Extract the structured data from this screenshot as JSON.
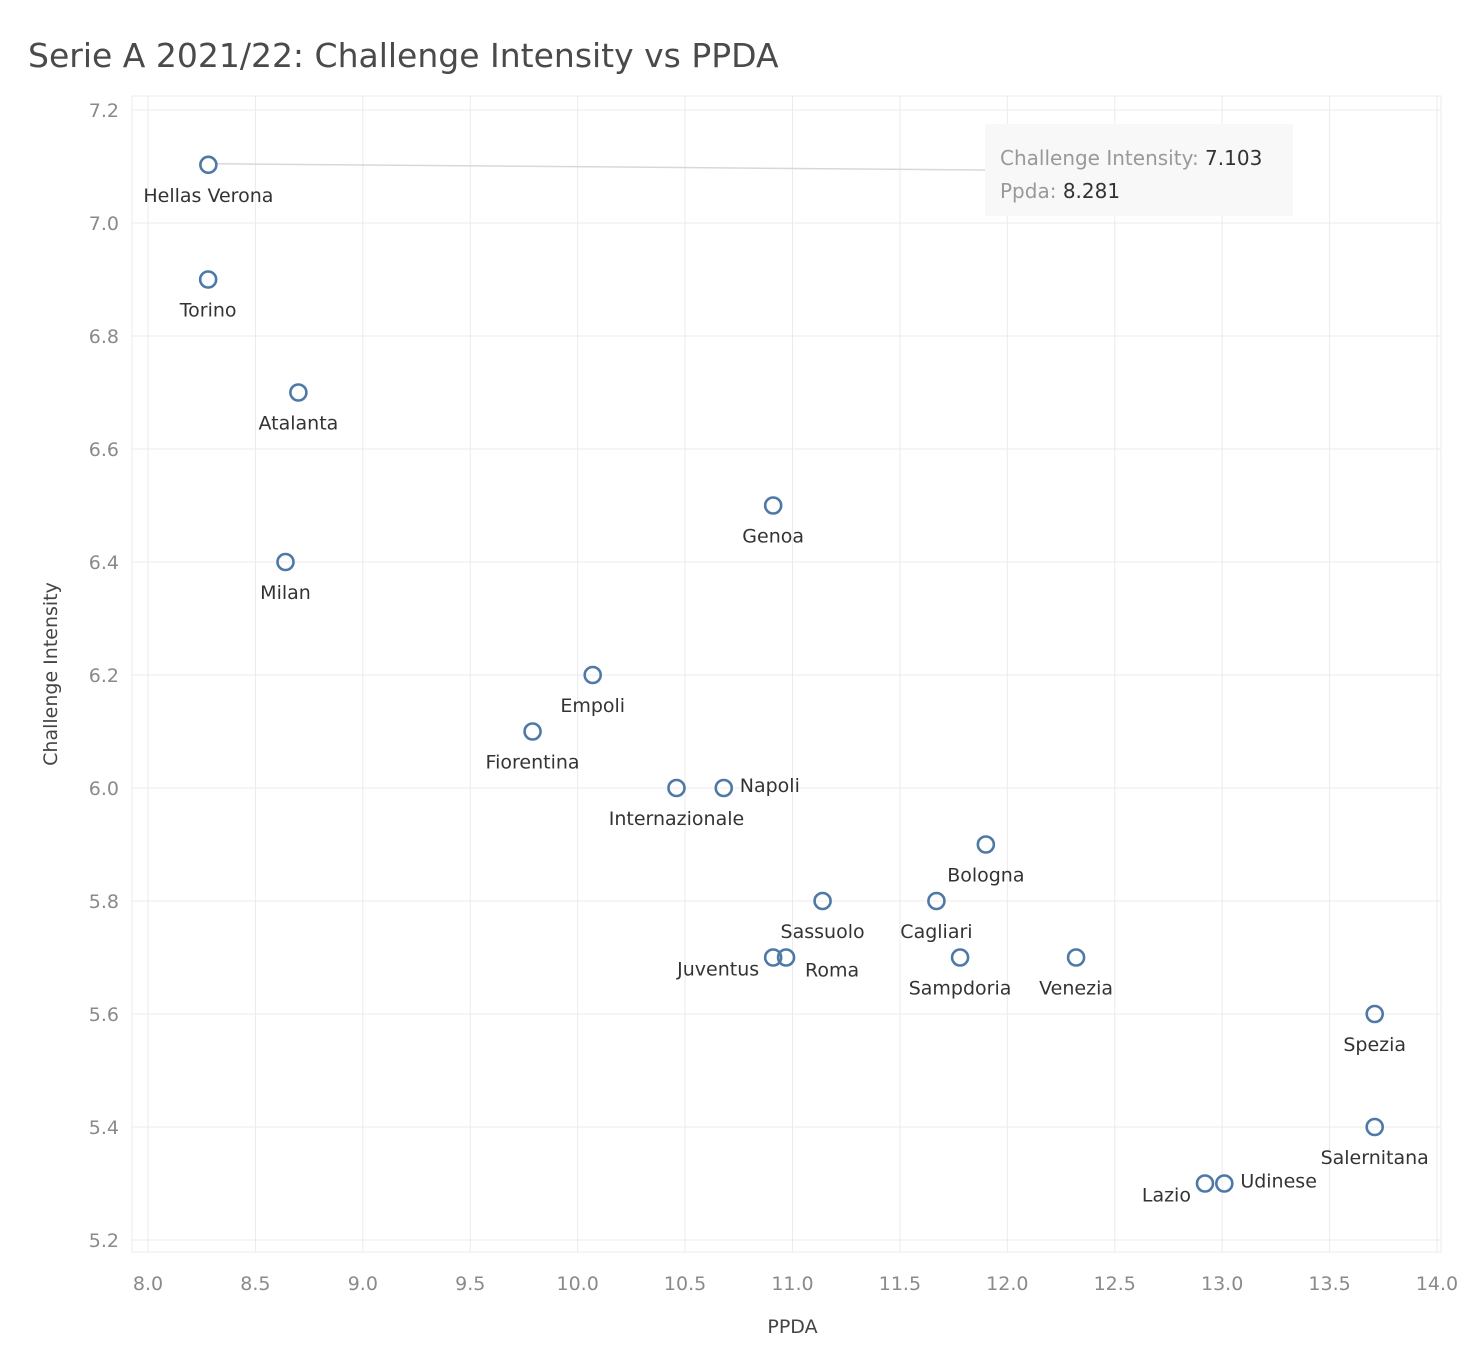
{
  "chart_data": {
    "type": "scatter",
    "title": "Serie A 2021/22: Challenge Intensity vs PPDA",
    "xlabel": "PPDA",
    "ylabel": "Challenge Intensity",
    "xlim": [
      8.0,
      14.0
    ],
    "ylim": [
      5.2,
      7.2
    ],
    "xticks": [
      "8.0",
      "8.5",
      "9.0",
      "9.5",
      "10.0",
      "10.5",
      "11.0",
      "11.5",
      "12.0",
      "12.5",
      "13.0",
      "13.5",
      "14.0"
    ],
    "yticks": [
      "5.2",
      "5.4",
      "5.6",
      "5.8",
      "6.0",
      "6.2",
      "6.4",
      "6.6",
      "6.8",
      "7.0",
      "7.2"
    ],
    "grid": true,
    "marker_color": "#4e79a7",
    "points": [
      {
        "label": "Hellas Verona",
        "x": 8.281,
        "y": 7.103,
        "pos": "below"
      },
      {
        "label": "Torino",
        "x": 8.28,
        "y": 6.9,
        "pos": "below"
      },
      {
        "label": "Atalanta",
        "x": 8.7,
        "y": 6.7,
        "pos": "below"
      },
      {
        "label": "Milan",
        "x": 8.64,
        "y": 6.4,
        "pos": "below"
      },
      {
        "label": "Genoa",
        "x": 10.91,
        "y": 6.5,
        "pos": "below"
      },
      {
        "label": "Empoli",
        "x": 10.07,
        "y": 6.2,
        "pos": "below"
      },
      {
        "label": "Fiorentina",
        "x": 9.79,
        "y": 6.1,
        "pos": "below"
      },
      {
        "label": "Internazionale",
        "x": 10.46,
        "y": 6.0,
        "pos": "below"
      },
      {
        "label": "Napoli",
        "x": 10.68,
        "y": 6.0,
        "pos": "right"
      },
      {
        "label": "Bologna",
        "x": 11.9,
        "y": 5.9,
        "pos": "below"
      },
      {
        "label": "Sassuolo",
        "x": 11.14,
        "y": 5.8,
        "pos": "below"
      },
      {
        "label": "Cagliari",
        "x": 11.67,
        "y": 5.8,
        "pos": "below"
      },
      {
        "label": "Juventus",
        "x": 10.91,
        "y": 5.7,
        "pos": "left"
      },
      {
        "label": "Roma",
        "x": 10.97,
        "y": 5.7,
        "pos": "belowright"
      },
      {
        "label": "Sampdoria",
        "x": 11.78,
        "y": 5.7,
        "pos": "below"
      },
      {
        "label": "Venezia",
        "x": 12.32,
        "y": 5.7,
        "pos": "below"
      },
      {
        "label": "Spezia",
        "x": 13.71,
        "y": 5.6,
        "pos": "below"
      },
      {
        "label": "Salernitana",
        "x": 13.71,
        "y": 5.4,
        "pos": "below"
      },
      {
        "label": "Lazio",
        "x": 12.92,
        "y": 5.3,
        "pos": "left"
      },
      {
        "label": "Udinese",
        "x": 13.01,
        "y": 5.3,
        "pos": "right"
      }
    ],
    "tooltip": {
      "line1_label": "Challenge Intensity:",
      "line1_value": "7.103",
      "line2_label": "Ppda:",
      "line2_value": "8.281",
      "target_index": 0
    }
  }
}
